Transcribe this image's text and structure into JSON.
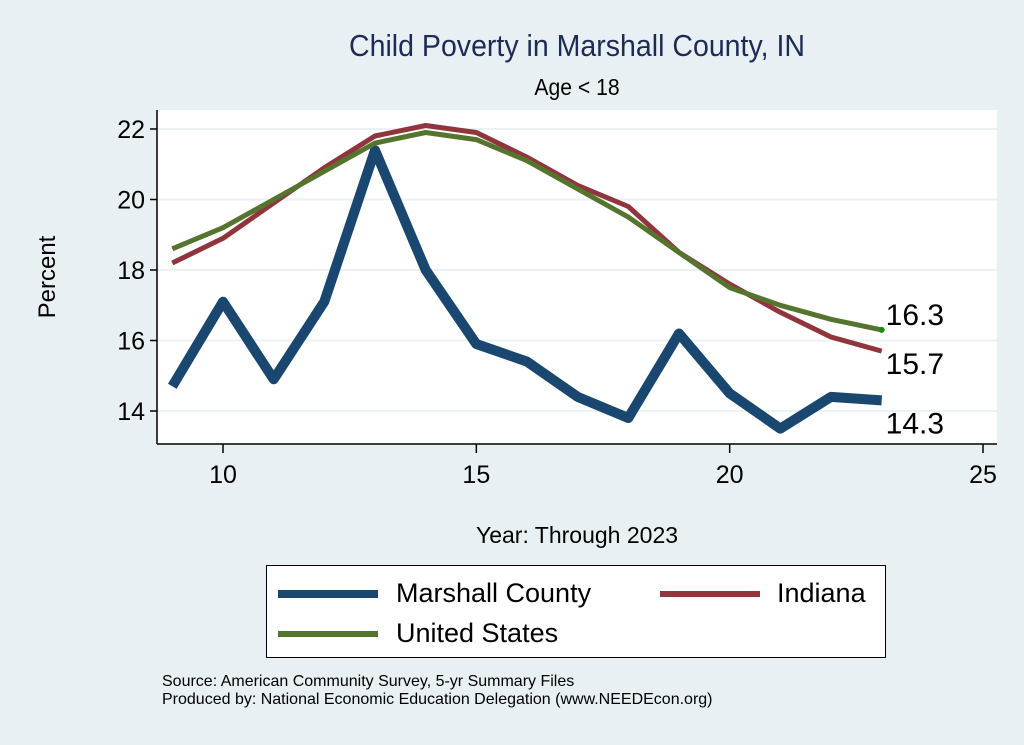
{
  "chart_data": {
    "type": "line",
    "title": "Child Poverty in Marshall County, IN",
    "subtitle": "Age < 18",
    "xlabel": "Year: Through 2023",
    "ylabel": "Percent",
    "xlim": [
      8.7,
      25.3
    ],
    "ylim": [
      13.06,
      22.5
    ],
    "xticks": [
      10,
      15,
      20,
      25
    ],
    "yticks": [
      14,
      16,
      18,
      20,
      22
    ],
    "grid": true,
    "legend_position": "bottom",
    "x": [
      9,
      10,
      11,
      12,
      13,
      14,
      15,
      16,
      17,
      18,
      19,
      20,
      21,
      22,
      23
    ],
    "series": [
      {
        "name": "Marshall County",
        "color": "#1a476f",
        "values": [
          14.7,
          17.1,
          14.9,
          17.1,
          21.4,
          18.0,
          15.9,
          15.4,
          14.4,
          13.8,
          16.2,
          14.5,
          13.5,
          14.4,
          14.3
        ],
        "end_label": "14.3"
      },
      {
        "name": "Indiana",
        "color": "#90353b",
        "values": [
          18.2,
          18.9,
          19.9,
          20.9,
          21.8,
          22.1,
          21.9,
          21.2,
          20.4,
          19.8,
          18.5,
          17.6,
          16.8,
          16.1,
          15.7
        ],
        "end_label": "15.7"
      },
      {
        "name": "United States",
        "color": "#55752f",
        "values": [
          18.6,
          19.2,
          20.0,
          20.8,
          21.6,
          21.9,
          21.7,
          21.1,
          20.3,
          19.5,
          18.5,
          17.5,
          17.0,
          16.6,
          16.3
        ],
        "end_label": "16.3"
      }
    ],
    "annotations": [
      "Source: American Community Survey, 5-yr Summary Files",
      "Produced by: National Economic Education Delegation (www.NEEDEcon.org)"
    ]
  },
  "legend": [
    {
      "label": "Marshall County",
      "color": "#1a476f"
    },
    {
      "label": "Indiana",
      "color": "#90353b"
    },
    {
      "label": "United States",
      "color": "#55752f"
    }
  ],
  "footer": {
    "source": "Source: American Community Survey, 5-yr Summary Files",
    "produced": "Produced by: National Economic Education Delegation (www.NEEDEcon.org)"
  }
}
